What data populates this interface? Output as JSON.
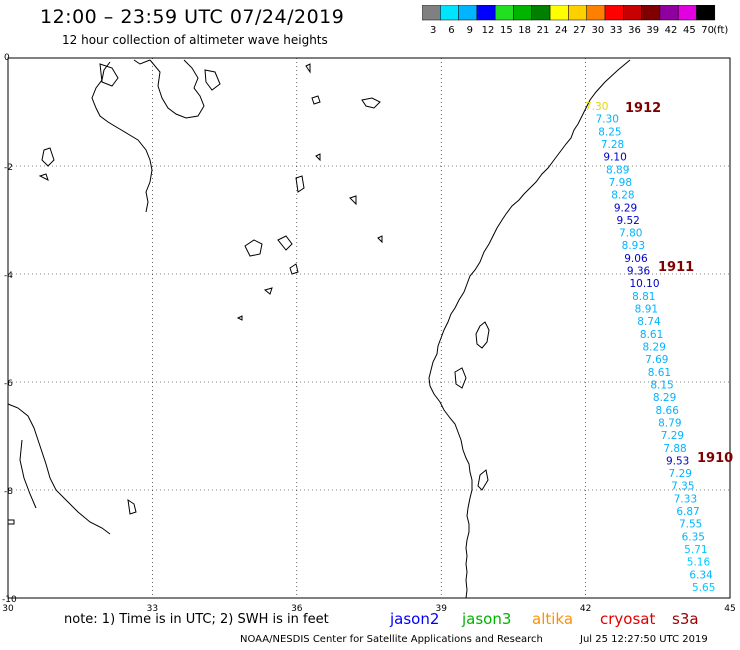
{
  "header": {
    "title": "12:00 – 23:59 UTC 07/24/2019",
    "subtitle": "12 hour collection of altimeter wave heights"
  },
  "legend": {
    "unit": "(ft)",
    "bins": [
      {
        "label": "3",
        "color": "#808080"
      },
      {
        "label": "6",
        "color": "#00e5ff"
      },
      {
        "label": "9",
        "color": "#00b4ff"
      },
      {
        "label": "12",
        "color": "#0000ff"
      },
      {
        "label": "15",
        "color": "#20e020"
      },
      {
        "label": "18",
        "color": "#00b400"
      },
      {
        "label": "21",
        "color": "#008000"
      },
      {
        "label": "24",
        "color": "#ffff00"
      },
      {
        "label": "27",
        "color": "#ffd000"
      },
      {
        "label": "30",
        "color": "#ff8000"
      },
      {
        "label": "33",
        "color": "#ff0000"
      },
      {
        "label": "36",
        "color": "#c80000"
      },
      {
        "label": "39",
        "color": "#800000"
      },
      {
        "label": "42",
        "color": "#9000a0"
      },
      {
        "label": "45",
        "color": "#e000e0"
      },
      {
        "label": "70",
        "color": "#000000"
      }
    ]
  },
  "axes": {
    "lon_ticks": [
      "30",
      "33",
      "36",
      "39",
      "42",
      "45"
    ],
    "lat_ticks": [
      "0",
      "-2",
      "-4",
      "-6",
      "-8",
      "-10"
    ]
  },
  "pass_labels": [
    {
      "text": "1912",
      "color": "#800000"
    },
    {
      "text": "1911",
      "color": "#800000"
    },
    {
      "text": "1910",
      "color": "#800000"
    }
  ],
  "wave_heights": [
    {
      "value": "7.30",
      "color": "#e8d800"
    },
    {
      "value": "7.30",
      "color": "#00b4ff"
    },
    {
      "value": "8.25",
      "color": "#00b4ff"
    },
    {
      "value": "7.28",
      "color": "#00b4ff"
    },
    {
      "value": "9.10",
      "color": "#0000c8"
    },
    {
      "value": "8.89",
      "color": "#00b4ff"
    },
    {
      "value": "7.98",
      "color": "#00b4ff"
    },
    {
      "value": "8.28",
      "color": "#00b4ff"
    },
    {
      "value": "9.29",
      "color": "#0000c8"
    },
    {
      "value": "9.52",
      "color": "#0000c8"
    },
    {
      "value": "7.80",
      "color": "#00b4ff"
    },
    {
      "value": "8.93",
      "color": "#00b4ff"
    },
    {
      "value": "9.06",
      "color": "#0000c8"
    },
    {
      "value": "9.36",
      "color": "#0000c8"
    },
    {
      "value": "10.10",
      "color": "#0000c8"
    },
    {
      "value": "8.81",
      "color": "#00b4ff"
    },
    {
      "value": "8.91",
      "color": "#00b4ff"
    },
    {
      "value": "8.74",
      "color": "#00b4ff"
    },
    {
      "value": "8.61",
      "color": "#00b4ff"
    },
    {
      "value": "8.29",
      "color": "#00b4ff"
    },
    {
      "value": "7.69",
      "color": "#00b4ff"
    },
    {
      "value": "8.61",
      "color": "#00b4ff"
    },
    {
      "value": "8.15",
      "color": "#00b4ff"
    },
    {
      "value": "8.29",
      "color": "#00b4ff"
    },
    {
      "value": "8.66",
      "color": "#00b4ff"
    },
    {
      "value": "8.79",
      "color": "#00b4ff"
    },
    {
      "value": "7.29",
      "color": "#00b4ff"
    },
    {
      "value": "7.88",
      "color": "#00b4ff"
    },
    {
      "value": "9.53",
      "color": "#0000c8"
    },
    {
      "value": "7.29",
      "color": "#00b4ff"
    },
    {
      "value": "7.35",
      "color": "#00b4ff"
    },
    {
      "value": "7.33",
      "color": "#00b4ff"
    },
    {
      "value": "6.87",
      "color": "#00b4ff"
    },
    {
      "value": "7.55",
      "color": "#00b4ff"
    },
    {
      "value": "6.35",
      "color": "#00b4ff"
    },
    {
      "value": "5.71",
      "color": "#00c8ff"
    },
    {
      "value": "5.16",
      "color": "#00c8ff"
    },
    {
      "value": "6.34",
      "color": "#00b4ff"
    },
    {
      "value": "5.65",
      "color": "#00c8ff"
    }
  ],
  "footer": {
    "note": "note: 1) Time is in UTC; 2) SWH is in feet",
    "satellites": [
      {
        "name": "jason2",
        "color": "#0000ff"
      },
      {
        "name": "jason3",
        "color": "#00b400"
      },
      {
        "name": "altika",
        "color": "#ff9000"
      },
      {
        "name": "cryosat",
        "color": "#e00000"
      },
      {
        "name": "s3a",
        "color": "#a00000"
      }
    ],
    "credit": "NOAA/NESDIS Center for Satellite Applications and Research",
    "timestamp": "Jul 25 12:27:50 UTC 2019"
  }
}
